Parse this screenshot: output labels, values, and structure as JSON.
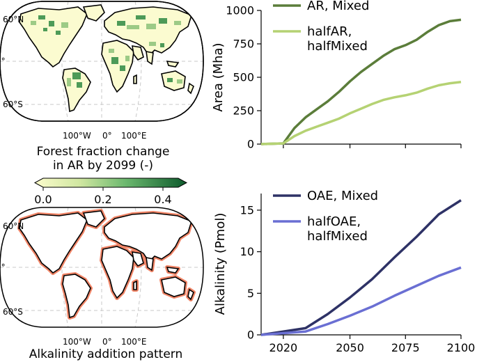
{
  "maps": {
    "map_lat_labels": [
      "60°N",
      "0°",
      "60°S"
    ],
    "map_lon_labels": [
      "100°W",
      "0°",
      "100°E"
    ],
    "top_caption": [
      "Forest fraction change",
      "in AR by 2099 (-)"
    ],
    "colorbar_ticks": [
      "0.0",
      "0.2",
      "0.4"
    ],
    "colorbar_range": [
      0,
      0.45
    ],
    "bottom_caption": "Alkalinity addition pattern",
    "colors": {
      "forest_dark": "#1d6b37",
      "forest_light": "#f8fbc9",
      "coast_line": "#f08466",
      "land_outline": "#000000"
    }
  },
  "chart_data": [
    {
      "type": "line",
      "xlabel": "",
      "ylabel": "Area (Mha)",
      "xlim": [
        2010,
        2100
      ],
      "ylim": [
        0,
        1000
      ],
      "yticks": [
        "0",
        "250",
        "500",
        "750",
        "1000"
      ],
      "xticks": [],
      "legend_position": "top-left",
      "series": [
        {
          "name": "AR, Mixed",
          "color": "#5b7d3a",
          "x": [
            2010,
            2020,
            2025,
            2030,
            2035,
            2040,
            2045,
            2050,
            2055,
            2060,
            2065,
            2070,
            2075,
            2080,
            2085,
            2090,
            2095,
            2100
          ],
          "y": [
            0,
            5,
            120,
            200,
            260,
            320,
            390,
            470,
            540,
            600,
            660,
            710,
            740,
            780,
            840,
            890,
            920,
            930
          ]
        },
        {
          "name": "halfAR, halfMixed",
          "color": "#b5d273",
          "x": [
            2010,
            2020,
            2025,
            2030,
            2035,
            2040,
            2045,
            2050,
            2055,
            2060,
            2065,
            2070,
            2075,
            2080,
            2085,
            2090,
            2095,
            2100
          ],
          "y": [
            0,
            5,
            60,
            100,
            130,
            160,
            190,
            230,
            265,
            300,
            330,
            350,
            365,
            385,
            415,
            440,
            455,
            465
          ]
        }
      ]
    },
    {
      "type": "line",
      "xlabel": "",
      "ylabel": "Alkalinity (Pmol)",
      "xlim": [
        2010,
        2100
      ],
      "ylim": [
        0,
        17
      ],
      "yticks": [
        "0",
        "5",
        "10",
        "15"
      ],
      "xticks": [
        "2020",
        "2050",
        "2075",
        "2100"
      ],
      "legend_position": "top-left",
      "series": [
        {
          "name": "OAE, Mixed",
          "color": "#2e3266",
          "x": [
            2010,
            2030,
            2040,
            2050,
            2060,
            2070,
            2080,
            2090,
            2100
          ],
          "y": [
            0,
            0.8,
            2.5,
            4.5,
            6.7,
            9.3,
            11.8,
            14.5,
            16.2
          ]
        },
        {
          "name": "halfOAE, halfMixed",
          "color": "#6a6fd3",
          "x": [
            2010,
            2030,
            2040,
            2050,
            2060,
            2070,
            2080,
            2090,
            2100
          ],
          "y": [
            0,
            0.4,
            1.3,
            2.3,
            3.4,
            4.7,
            5.9,
            7.1,
            8.1
          ]
        }
      ]
    }
  ]
}
